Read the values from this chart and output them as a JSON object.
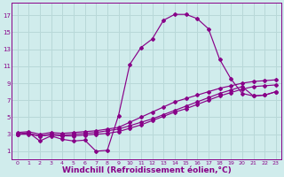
{
  "background_color": "#d0ecec",
  "grid_color": "#b8d8d8",
  "line_color": "#880088",
  "xlabel": "Windchill (Refroidissement éolien,°C)",
  "xlabel_fontsize": 6.5,
  "xtick_labels": [
    "0",
    "1",
    "2",
    "3",
    "4",
    "5",
    "6",
    "7",
    "8",
    "9",
    "10",
    "11",
    "12",
    "13",
    "14",
    "15",
    "16",
    "17",
    "18",
    "19",
    "20",
    "21",
    "22",
    "23"
  ],
  "ytick_labels": [
    "1",
    "3",
    "5",
    "7",
    "9",
    "11",
    "13",
    "15",
    "17"
  ],
  "ytick_vals": [
    1,
    3,
    5,
    7,
    9,
    11,
    13,
    15,
    17
  ],
  "xlim": [
    -0.5,
    23.5
  ],
  "ylim": [
    0,
    18.5
  ],
  "curve1_x": [
    0,
    1,
    2,
    3,
    4,
    5,
    6,
    7,
    8,
    9,
    10,
    11,
    12,
    13,
    14,
    15,
    16,
    17,
    18,
    19,
    20,
    21,
    22,
    23
  ],
  "curve1_y": [
    3.0,
    3.2,
    2.2,
    2.8,
    2.4,
    2.2,
    2.3,
    1.0,
    1.1,
    5.2,
    11.2,
    13.2,
    14.2,
    16.4,
    17.1,
    17.1,
    16.6,
    15.4,
    11.8,
    9.5,
    7.8,
    7.5,
    7.6,
    8.0
  ],
  "curve2_x": [
    0,
    1,
    2,
    3,
    4,
    5,
    6,
    7,
    8,
    9,
    10,
    11,
    12,
    13,
    14,
    15,
    16,
    17,
    18,
    19,
    20,
    21,
    22,
    23
  ],
  "curve2_y": [
    3.2,
    3.3,
    3.0,
    3.2,
    3.1,
    3.2,
    3.3,
    3.4,
    3.6,
    3.8,
    4.4,
    5.0,
    5.6,
    6.2,
    6.8,
    7.2,
    7.6,
    8.0,
    8.4,
    8.7,
    9.0,
    9.2,
    9.3,
    9.4
  ],
  "curve3_x": [
    0,
    1,
    2,
    3,
    4,
    5,
    6,
    7,
    8,
    9,
    10,
    11,
    12,
    13,
    14,
    15,
    16,
    17,
    18,
    19,
    20,
    21,
    22,
    23
  ],
  "curve3_y": [
    3.0,
    3.1,
    2.8,
    3.0,
    2.9,
    3.0,
    3.1,
    3.2,
    3.4,
    3.6,
    4.0,
    4.4,
    4.8,
    5.3,
    5.8,
    6.3,
    6.8,
    7.3,
    7.8,
    8.2,
    8.6,
    7.5,
    7.6,
    8.0
  ],
  "curve4_x": [
    0,
    1,
    2,
    3,
    4,
    5,
    6,
    7,
    8,
    9,
    10,
    11,
    12,
    13,
    14,
    15,
    16,
    17,
    18,
    19,
    20,
    21,
    22,
    23
  ],
  "curve4_y": [
    3.0,
    3.0,
    2.8,
    2.9,
    2.8,
    2.8,
    2.9,
    3.0,
    3.1,
    3.3,
    3.7,
    4.1,
    4.6,
    5.1,
    5.6,
    6.0,
    6.5,
    7.0,
    7.5,
    7.9,
    8.3,
    8.6,
    8.7,
    8.8
  ],
  "marker": "D",
  "markersize": 2.0,
  "linewidth": 0.85
}
